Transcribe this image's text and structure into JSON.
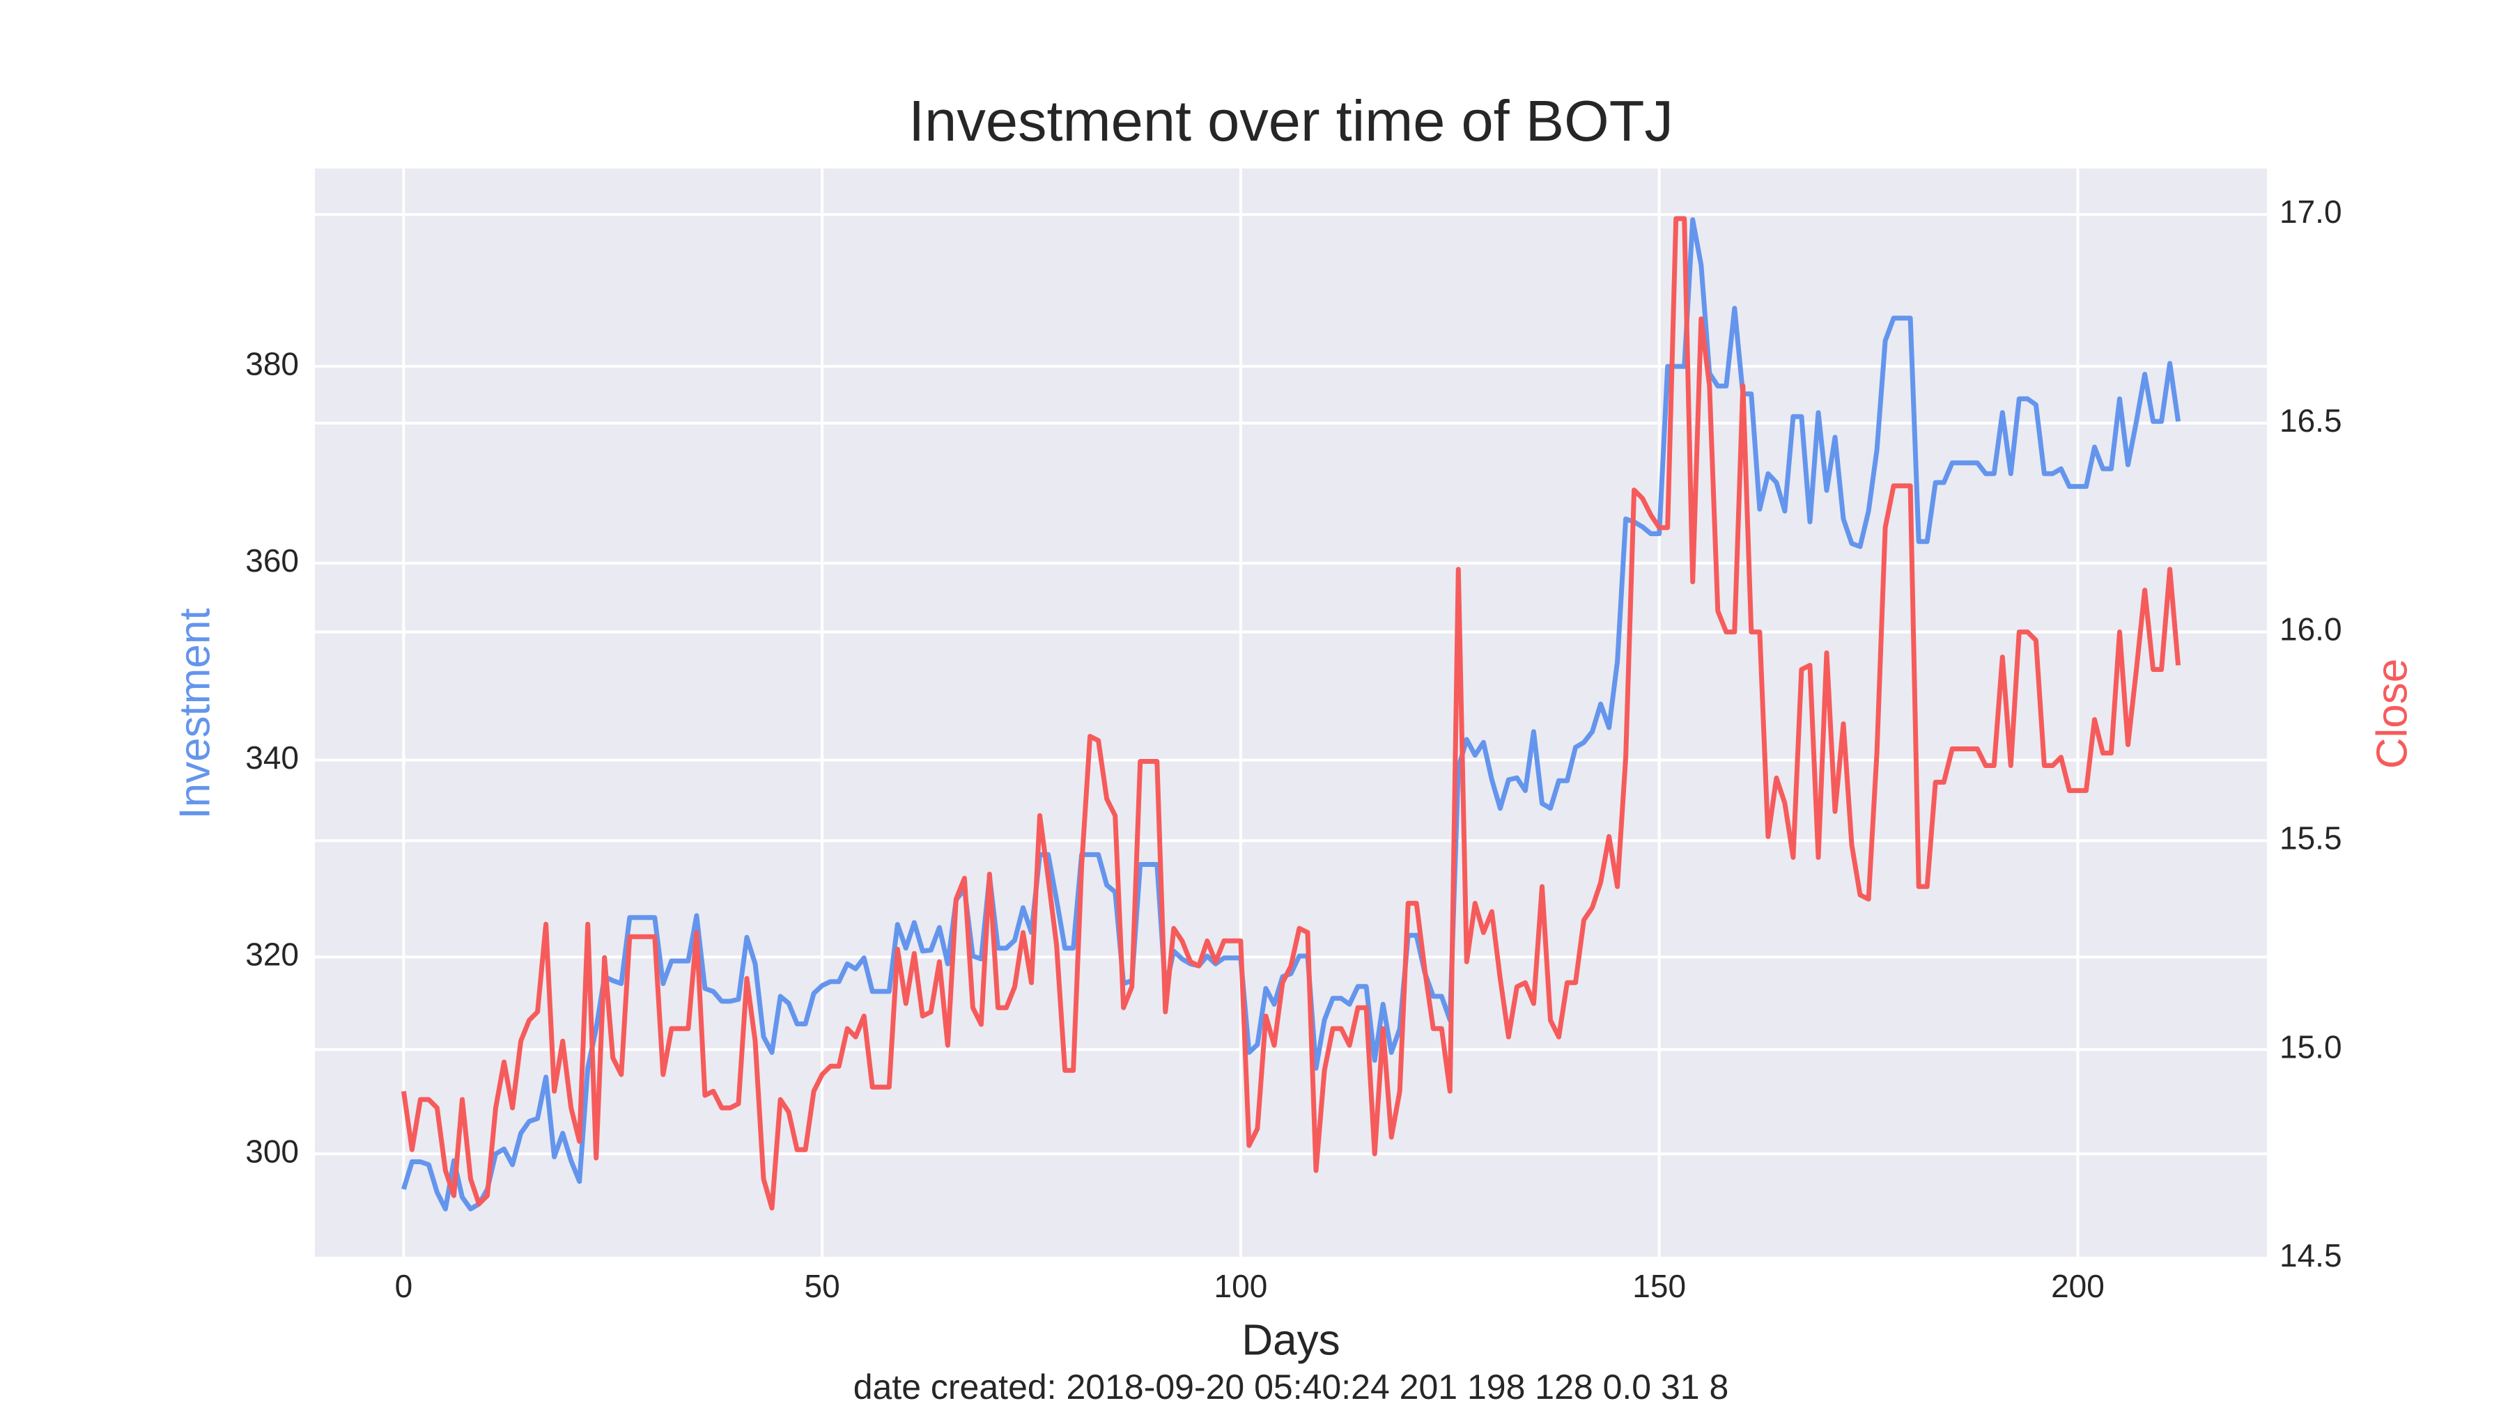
{
  "chart_data": {
    "type": "line",
    "title": "Investment over time of BOTJ",
    "xlabel": "Days",
    "ylabel": "Investment",
    "y2label": "Close",
    "annotation": "date created: 2018-09-20 05:40:24 201 198 128 0.0 31 8",
    "x": [
      0,
      1,
      2,
      3,
      4,
      5,
      6,
      7,
      8,
      9,
      10,
      11,
      12,
      13,
      14,
      15,
      16,
      17,
      18,
      19,
      20,
      21,
      22,
      23,
      24,
      25,
      26,
      27,
      28,
      29,
      30,
      31,
      32,
      33,
      34,
      35,
      36,
      37,
      38,
      39,
      40,
      41,
      42,
      43,
      44,
      45,
      46,
      47,
      48,
      49,
      50,
      51,
      52,
      53,
      54,
      55,
      56,
      57,
      58,
      59,
      60,
      61,
      62,
      63,
      64,
      65,
      66,
      67,
      68,
      69,
      70,
      71,
      72,
      73,
      74,
      75,
      76,
      77,
      78,
      79,
      80,
      81,
      82,
      83,
      84,
      85,
      86,
      87,
      88,
      89,
      90,
      91,
      92,
      93,
      94,
      95,
      96,
      97,
      98,
      99,
      100,
      101,
      102,
      103,
      104,
      105,
      106,
      107,
      108,
      109,
      110,
      111,
      112,
      113,
      114,
      115,
      116,
      117,
      118,
      119,
      120,
      121,
      122,
      123,
      124,
      125,
      126,
      127,
      128,
      129,
      130,
      131,
      132,
      133,
      134,
      135,
      136,
      137,
      138,
      139,
      140,
      141,
      142,
      143,
      144,
      145,
      146,
      147,
      148,
      149,
      150,
      151,
      152,
      153,
      154,
      155,
      156,
      157,
      158,
      159,
      160,
      161,
      162,
      163,
      164,
      165,
      166,
      167,
      168,
      169,
      170,
      171,
      172,
      173,
      174,
      175,
      176,
      177,
      178,
      179,
      180,
      181,
      182,
      183,
      184,
      185,
      186,
      187,
      188,
      189,
      190,
      191,
      192,
      193,
      194,
      195,
      196,
      197,
      198,
      199,
      200,
      201,
      202,
      203,
      204,
      205,
      206,
      207,
      208,
      209,
      210,
      211,
      212
    ],
    "series": [
      {
        "name": "Investment",
        "color": "#6495ed",
        "axis": "y",
        "values": [
          296.4,
          299.2,
          299.2,
          298.9,
          296.1,
          294.4,
          299.3,
          295.6,
          294.4,
          294.9,
          296.4,
          300.0,
          300.5,
          298.9,
          302.1,
          303.3,
          303.6,
          307.8,
          299.7,
          302.1,
          299.3,
          297.2,
          308.7,
          312.7,
          318.0,
          317.6,
          317.3,
          324.0,
          324.0,
          324.0,
          324.0,
          317.3,
          319.6,
          319.6,
          319.6,
          324.2,
          316.8,
          316.5,
          315.5,
          315.5,
          315.7,
          322.0,
          319.3,
          311.9,
          310.3,
          316.0,
          315.3,
          313.2,
          313.2,
          316.3,
          317.1,
          317.5,
          317.5,
          319.3,
          318.8,
          319.9,
          316.5,
          316.5,
          316.5,
          323.3,
          320.9,
          323.5,
          320.6,
          320.7,
          323.0,
          319.3,
          325.8,
          326.9,
          320.1,
          319.8,
          328.2,
          320.9,
          320.9,
          321.7,
          325.0,
          322.5,
          330.4,
          330.4,
          325.8,
          320.9,
          320.9,
          330.4,
          330.4,
          330.4,
          327.3,
          326.6,
          317.3,
          317.6,
          329.4,
          329.4,
          329.4,
          316.8,
          320.6,
          319.8,
          319.3,
          319.1,
          320.1,
          319.3,
          319.9,
          319.9,
          319.9,
          310.3,
          311.1,
          316.8,
          315.2,
          318.0,
          318.3,
          320.1,
          320.1,
          308.7,
          313.6,
          315.8,
          315.8,
          315.2,
          317.0,
          317.0,
          309.5,
          315.2,
          310.3,
          312.7,
          322.2,
          322.2,
          318.4,
          316.0,
          316.0,
          313.6,
          339.2,
          342.1,
          340.5,
          341.8,
          338.0,
          335.1,
          338.0,
          338.2,
          336.9,
          342.9,
          335.6,
          335.1,
          337.9,
          337.9,
          341.3,
          341.8,
          342.9,
          345.7,
          343.3,
          350.0,
          364.5,
          364.2,
          363.7,
          363.0,
          363.0,
          380.0,
          380.0,
          380.0,
          394.9,
          390.3,
          379.3,
          378.0,
          378.0,
          385.9,
          377.2,
          377.2,
          365.5,
          369.1,
          368.2,
          365.3,
          374.9,
          374.9,
          364.2,
          375.3,
          367.4,
          372.8,
          364.5,
          362.0,
          361.7,
          365.3,
          371.5,
          382.6,
          384.9,
          384.9,
          384.9,
          362.2,
          362.2,
          368.2,
          368.2,
          370.2,
          370.2,
          370.2,
          370.2,
          369.1,
          369.1,
          375.3,
          369.1,
          376.7,
          376.7,
          376.1,
          369.1,
          369.1,
          369.6,
          367.8,
          367.8,
          367.8,
          371.8,
          369.6,
          369.6,
          376.7,
          370.0,
          374.4,
          379.2,
          374.4,
          374.4,
          380.3,
          374.4
        ]
      },
      {
        "name": "Close",
        "color": "#f65b5b",
        "axis": "y2",
        "values": [
          14.9,
          14.76,
          14.88,
          14.88,
          14.86,
          14.71,
          14.65,
          14.88,
          14.69,
          14.63,
          14.65,
          14.86,
          14.97,
          14.86,
          15.02,
          15.07,
          15.09,
          15.3,
          14.9,
          15.02,
          14.86,
          14.78,
          15.3,
          14.74,
          15.22,
          14.98,
          14.94,
          15.27,
          15.27,
          15.27,
          15.27,
          14.94,
          15.05,
          15.05,
          15.05,
          15.28,
          14.89,
          14.9,
          14.86,
          14.86,
          14.87,
          15.17,
          15.02,
          14.69,
          14.62,
          14.88,
          14.85,
          14.76,
          14.76,
          14.9,
          14.94,
          14.96,
          14.96,
          15.05,
          15.03,
          15.08,
          14.91,
          14.91,
          14.91,
          15.24,
          15.11,
          15.23,
          15.08,
          15.09,
          15.21,
          15.01,
          15.36,
          15.41,
          15.1,
          15.06,
          15.42,
          15.1,
          15.1,
          15.15,
          15.28,
          15.16,
          15.56,
          15.41,
          15.25,
          14.95,
          14.95,
          15.44,
          15.75,
          15.74,
          15.6,
          15.56,
          15.1,
          15.15,
          15.69,
          15.69,
          15.69,
          15.09,
          15.29,
          15.26,
          15.21,
          15.2,
          15.26,
          15.21,
          15.26,
          15.26,
          15.26,
          14.77,
          14.81,
          15.08,
          15.01,
          15.16,
          15.2,
          15.29,
          15.28,
          14.71,
          14.95,
          15.05,
          15.05,
          15.01,
          15.1,
          15.1,
          14.75,
          15.05,
          14.79,
          14.9,
          15.35,
          15.35,
          15.19,
          15.05,
          15.05,
          14.9,
          16.15,
          15.21,
          15.35,
          15.28,
          15.33,
          15.17,
          15.03,
          15.15,
          15.16,
          15.11,
          15.39,
          15.07,
          15.03,
          15.16,
          15.16,
          15.31,
          15.34,
          15.4,
          15.51,
          15.39,
          15.7,
          16.34,
          16.32,
          16.28,
          16.25,
          16.25,
          16.99,
          16.99,
          16.12,
          16.75,
          16.59,
          16.05,
          16.0,
          16.0,
          16.59,
          16.0,
          16.0,
          15.51,
          15.65,
          15.59,
          15.46,
          15.91,
          15.92,
          15.46,
          15.95,
          15.57,
          15.78,
          15.49,
          15.37,
          15.36,
          15.71,
          16.25,
          16.35,
          16.35,
          16.35,
          15.39,
          15.39,
          15.64,
          15.64,
          15.72,
          15.72,
          15.72,
          15.72,
          15.68,
          15.68,
          15.94,
          15.68,
          16.0,
          16.0,
          15.98,
          15.68,
          15.68,
          15.7,
          15.62,
          15.62,
          15.62,
          15.79,
          15.71,
          15.71,
          16.0,
          15.73,
          15.91,
          16.1,
          15.91,
          15.91,
          16.15,
          15.92
        ]
      }
    ],
    "xlim": [
      -10.6,
      222.6
    ],
    "xticks": [
      0,
      50,
      100,
      150,
      200
    ],
    "ylim": [
      289.4,
      400.1
    ],
    "yticks": [
      300,
      320,
      340,
      360,
      380
    ],
    "y2lim": [
      14.5,
      17.11
    ],
    "y2ticks": [
      {
        "value": 14.5,
        "label": "14.5"
      },
      {
        "value": 15,
        "label": "15.0"
      },
      {
        "value": 15.5,
        "label": "15.5"
      },
      {
        "value": 16,
        "label": "16.0"
      },
      {
        "value": 16.5,
        "label": "16.5"
      },
      {
        "value": 17,
        "label": "17.0"
      }
    ],
    "grid": true
  }
}
